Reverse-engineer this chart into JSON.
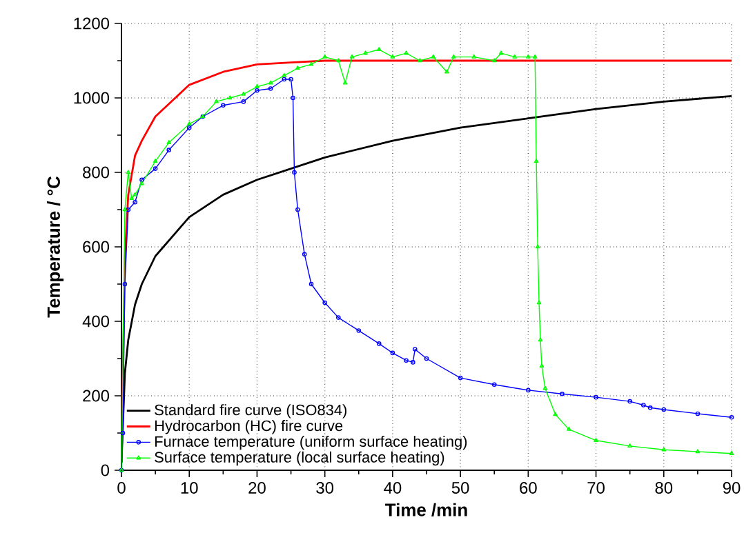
{
  "chart_data": {
    "type": "line",
    "xlabel": "Time /min",
    "ylabel": "Temperature / °C",
    "xlim": [
      0,
      90
    ],
    "ylim": [
      0,
      1200
    ],
    "xticks": [
      0,
      10,
      20,
      30,
      40,
      50,
      60,
      70,
      80,
      90
    ],
    "yticks": [
      0,
      200,
      400,
      600,
      800,
      1000,
      1200
    ],
    "grid": true,
    "legend": "bottom left",
    "series": [
      {
        "name": "Standard fire curve (ISO834)",
        "color": "#000000",
        "marker": "none",
        "x": [
          0,
          0.5,
          1,
          2,
          3,
          5,
          10,
          15,
          20,
          30,
          40,
          50,
          60,
          70,
          80,
          90
        ],
        "values": [
          20,
          260,
          350,
          445,
          500,
          575,
          680,
          740,
          780,
          840,
          885,
          920,
          945,
          970,
          990,
          1005
        ]
      },
      {
        "name": "Hydrocarbon (HC) fire curve",
        "color": "#ff0000",
        "marker": "none",
        "x": [
          0,
          0.5,
          1,
          2,
          3,
          5,
          10,
          15,
          20,
          25,
          30,
          40,
          90
        ],
        "values": [
          20,
          570,
          740,
          845,
          885,
          950,
          1035,
          1070,
          1090,
          1095,
          1100,
          1100,
          1100
        ]
      },
      {
        "name": "Furnace temperature (uniform surface heating)",
        "color": "#0000ff",
        "marker": "circle",
        "x": [
          0,
          0.2,
          0.5,
          1,
          2,
          3,
          5,
          7,
          10,
          12,
          15,
          18,
          20,
          22,
          24,
          25,
          25.3,
          25.5,
          26,
          27,
          28,
          30,
          32,
          35,
          38,
          40,
          42,
          43,
          43.3,
          45,
          50,
          55,
          60,
          65,
          70,
          75,
          77,
          78,
          80,
          85,
          90
        ],
        "values": [
          0,
          100,
          500,
          700,
          720,
          780,
          810,
          860,
          920,
          950,
          980,
          990,
          1020,
          1025,
          1050,
          1050,
          1000,
          800,
          700,
          580,
          500,
          450,
          410,
          375,
          340,
          315,
          295,
          290,
          325,
          300,
          248,
          230,
          215,
          205,
          196,
          185,
          175,
          168,
          163,
          152,
          142
        ]
      },
      {
        "name": "Surface temperature (local surface heating)",
        "color": "#00ff00",
        "marker": "triangle",
        "x": [
          0,
          0.5,
          1,
          1.5,
          2,
          3,
          5,
          7,
          10,
          12,
          14,
          16,
          18,
          20,
          22,
          24,
          26,
          28,
          30,
          32,
          33,
          34,
          36,
          38,
          40,
          42,
          44,
          46,
          48,
          49,
          52,
          55,
          56,
          58,
          60,
          61,
          61.2,
          61.4,
          61.6,
          61.8,
          62,
          62.5,
          64,
          66,
          70,
          75,
          80,
          85,
          90
        ],
        "values": [
          0,
          700,
          800,
          730,
          740,
          770,
          830,
          880,
          930,
          950,
          990,
          1000,
          1010,
          1030,
          1040,
          1060,
          1080,
          1090,
          1110,
          1100,
          1040,
          1110,
          1120,
          1130,
          1110,
          1120,
          1100,
          1110,
          1070,
          1110,
          1110,
          1100,
          1120,
          1110,
          1110,
          1110,
          830,
          600,
          450,
          350,
          280,
          220,
          150,
          110,
          80,
          65,
          55,
          50,
          45
        ]
      }
    ]
  }
}
